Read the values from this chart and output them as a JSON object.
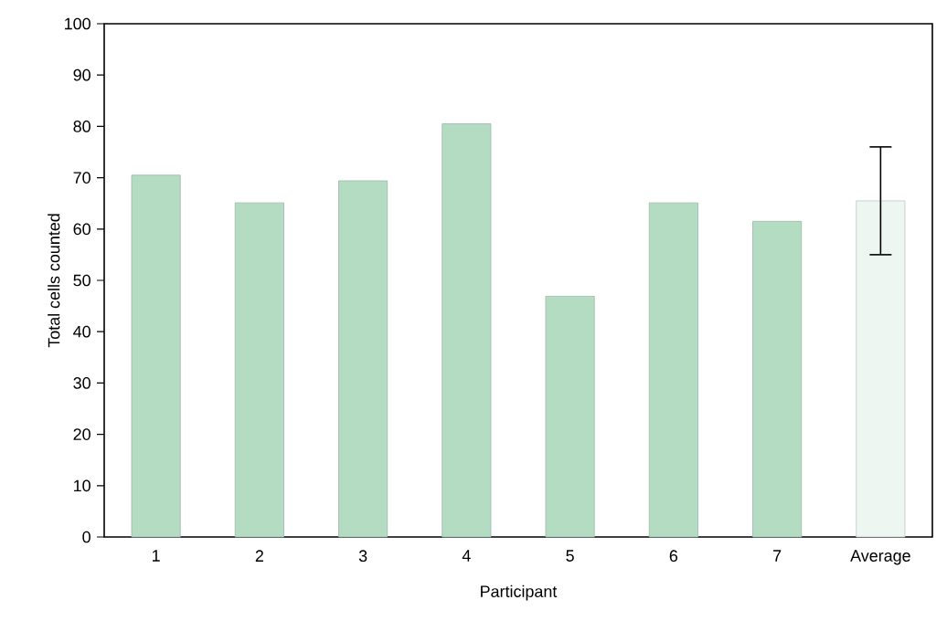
{
  "chart_data": {
    "type": "bar",
    "xlabel": "Participant",
    "ylabel": "Total cells counted",
    "categories": [
      "1",
      "2",
      "3",
      "4",
      "5",
      "6",
      "7",
      "Average"
    ],
    "values": [
      70.5,
      65.1,
      69.4,
      80.5,
      46.9,
      65.1,
      61.5,
      65.5
    ],
    "errors": [
      null,
      null,
      null,
      null,
      null,
      null,
      null,
      10.5
    ],
    "colors": [
      "#b3dcc3",
      "#b3dcc3",
      "#b3dcc3",
      "#b3dcc3",
      "#b3dcc3",
      "#b3dcc3",
      "#b3dcc3",
      "#eef6f2"
    ],
    "ylim": [
      0,
      100
    ],
    "yticks": [
      0,
      10,
      20,
      30,
      40,
      50,
      60,
      70,
      80,
      90,
      100
    ],
    "grid": false
  }
}
